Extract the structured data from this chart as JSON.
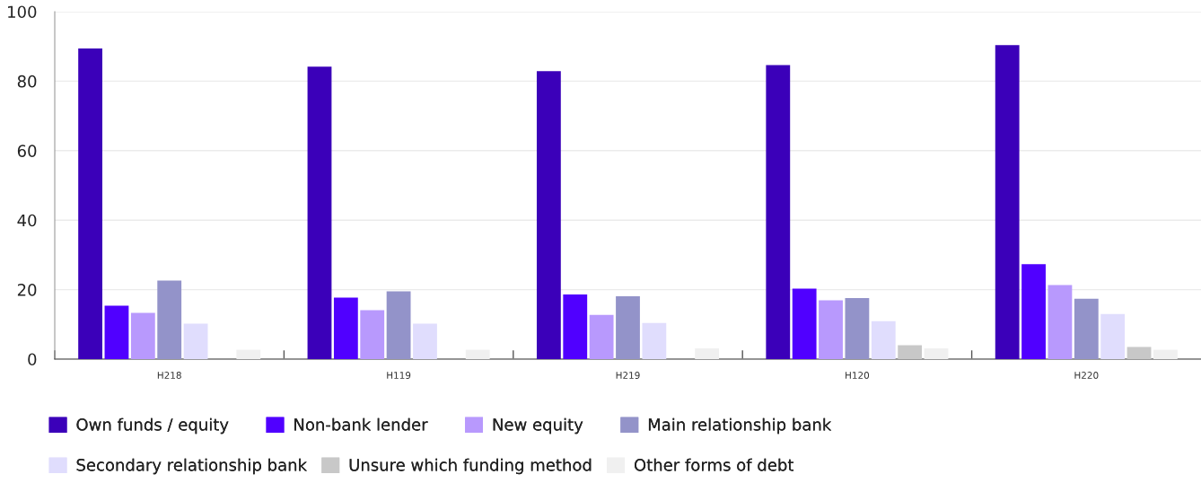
{
  "chart_data": {
    "type": "bar",
    "categories": [
      "H218",
      "H119",
      "H219",
      "H120",
      "H220"
    ],
    "series": [
      {
        "name": "Own funds / equity",
        "color": "#3b00b9",
        "values": [
          89.4,
          84.2,
          82.9,
          84.6,
          90.4
        ]
      },
      {
        "name": "Non-bank lender",
        "color": "#5000ff",
        "values": [
          15.4,
          17.7,
          18.6,
          20.3,
          27.3
        ]
      },
      {
        "name": "New equity",
        "color": "#b899fd",
        "values": [
          13.3,
          14.1,
          12.7,
          16.9,
          21.3
        ]
      },
      {
        "name": "Main relationship bank",
        "color": "#9393c9",
        "values": [
          22.6,
          19.5,
          18.1,
          17.6,
          17.4
        ]
      },
      {
        "name": "Secondary relationship bank",
        "color": "#e0ddfd",
        "values": [
          10.2,
          10.2,
          10.4,
          10.9,
          13.0
        ]
      },
      {
        "name": "Unsure which funding method",
        "color": "#c8c8c8",
        "values": [
          null,
          null,
          null,
          4.0,
          3.5
        ]
      },
      {
        "name": "Other forms of debt",
        "color": "#f0f0f0",
        "values": [
          2.7,
          2.7,
          3.1,
          3.1,
          2.7
        ]
      }
    ],
    "ylim": [
      0,
      100
    ],
    "yticks": [
      0,
      20,
      40,
      60,
      80,
      100
    ],
    "grid": "y",
    "legend": "bottom"
  }
}
